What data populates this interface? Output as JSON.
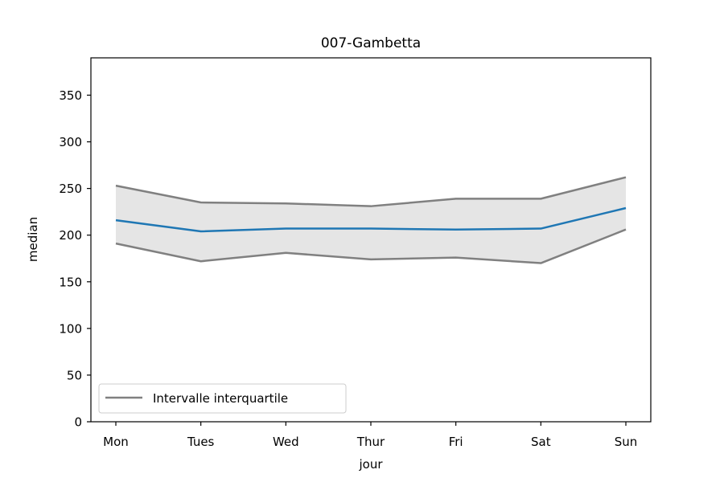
{
  "chart_data": {
    "type": "line",
    "title": "007-Gambetta",
    "xlabel": "jour",
    "ylabel": "median",
    "categories": [
      "Mon",
      "Tues",
      "Wed",
      "Thur",
      "Fri",
      "Sat",
      "Sun"
    ],
    "ylim": [
      0,
      390
    ],
    "yticks": [
      0,
      50,
      100,
      150,
      200,
      250,
      300,
      350
    ],
    "series": [
      {
        "values": [
          216,
          204,
          207,
          207,
          206,
          207,
          229
        ],
        "color": "#1f77b4"
      }
    ],
    "band": {
      "label": "Intervalle interquartile",
      "upper": [
        253,
        235,
        234,
        231,
        239,
        239,
        262
      ],
      "lower": [
        191,
        172,
        181,
        174,
        176,
        170,
        206
      ],
      "line_color": "#808080",
      "fill_color": "#e5e5e5"
    },
    "grid": false,
    "legend_position": "lower-left"
  }
}
